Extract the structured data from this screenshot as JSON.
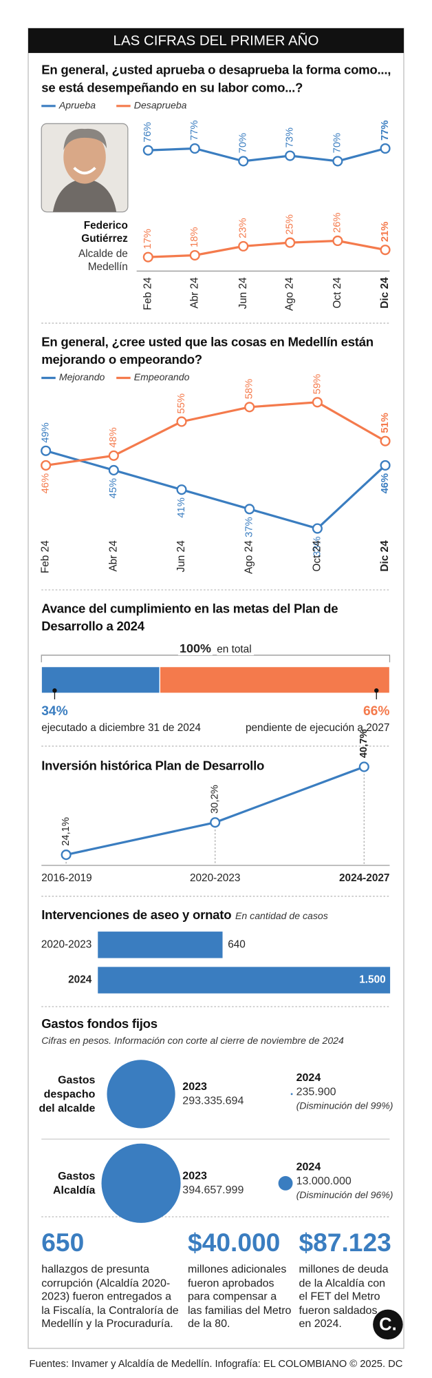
{
  "title": "LAS CIFRAS DEL PRIMER AÑO",
  "chart_data": [
    {
      "type": "line",
      "title": "En general, ¿usted aprueba o desaprueba la forma como..., se está desempeñando en su labor como...?",
      "person": {
        "name": "Federico Gutiérrez",
        "role": "Alcalde de Medellín"
      },
      "categories": [
        "Feb 24",
        "Abr 24",
        "Jun 24",
        "Ago 24",
        "Oct 24",
        "Dic 24"
      ],
      "series": [
        {
          "name": "Aprueba",
          "color": "#3a7dc0",
          "values": [
            76,
            77,
            70,
            73,
            70,
            77
          ],
          "value_labels": [
            "76%",
            "77%",
            "70%",
            "73%",
            "70%",
            "77%"
          ]
        },
        {
          "name": "Desaprueba",
          "color": "#f47a4c",
          "values": [
            17,
            18,
            23,
            25,
            26,
            21
          ],
          "value_labels": [
            "17%",
            "18%",
            "23%",
            "25%",
            "26%",
            "21%"
          ]
        }
      ]
    },
    {
      "type": "line",
      "title": "En general, ¿cree usted que las cosas en Medellín están mejorando o empeorando?",
      "categories": [
        "Feb 24",
        "Abr 24",
        "Jun 24",
        "Ago 24",
        "Oct 24",
        "Dic 24"
      ],
      "series": [
        {
          "name": "Mejorando",
          "color": "#3a7dc0",
          "values": [
            49,
            45,
            41,
            37,
            33,
            46
          ],
          "value_labels": [
            "49%",
            "45%",
            "41%",
            "37%",
            "33%",
            "46%"
          ]
        },
        {
          "name": "Empeorando",
          "color": "#f47a4c",
          "values": [
            46,
            48,
            55,
            58,
            59,
            51
          ],
          "value_labels": [
            "46%",
            "48%",
            "55%",
            "58%",
            "59%",
            "51%"
          ]
        }
      ]
    },
    {
      "type": "stacked-bar",
      "title": "Avance del cumplimiento en las metas del Plan de Desarrollo a 2024",
      "total": 100,
      "total_label": "100%",
      "total_note": "en total",
      "series": [
        {
          "name": "ejecutado a diciembre 31 de 2024",
          "color": "#3a7dc0",
          "values": [
            34
          ],
          "value_labels": [
            "34%"
          ]
        },
        {
          "name": "pendiente de ejecución a 2027",
          "color": "#f47a4c",
          "values": [
            66
          ],
          "value_labels": [
            "66%"
          ]
        }
      ]
    },
    {
      "type": "line",
      "title": "Inversión histórica Plan de Desarrollo",
      "categories": [
        "2016-2019",
        "2020-2023",
        "2024-2027"
      ],
      "color": "#3a7dc0",
      "values": [
        24.1,
        30.2,
        40.7
      ],
      "value_labels": [
        "24,1%",
        "30,2%",
        "40,7%"
      ]
    },
    {
      "type": "hbar",
      "title": "Intervenciones de aseo y ornato",
      "subtitle": "En cantidad de casos",
      "categories": [
        "2020-2023",
        "2024"
      ],
      "color": "#3a7dc0",
      "values": [
        640,
        1500
      ],
      "value_labels": [
        "640",
        "1.500"
      ]
    },
    {
      "type": "bubble",
      "title": "Gastos fondos fijos",
      "subtitle": "Cifras en pesos. Información con corte al cierre de noviembre de 2024",
      "categories": [
        "Gastos despacho del alcalde",
        "Gastos Alcaldía"
      ],
      "series": [
        {
          "name": "2023",
          "color": "#3a7dc0",
          "values": [
            293335694,
            394657999
          ],
          "value_labels": [
            "293.335.694",
            "394.657.999"
          ]
        },
        {
          "name": "2024",
          "color": "#3a7dc0",
          "values": [
            235900,
            13000000
          ],
          "value_labels": [
            "235.900",
            "13.000.000"
          ],
          "notes": [
            "(Disminución del 99%)",
            "(Disminución del 96%)"
          ]
        }
      ]
    }
  ],
  "stats": [
    {
      "value": "650",
      "text": "hallazgos de presunta corrupción (Alcaldía 2020-2023) fueron entregados a la Fiscalía, la Contraloría de Medellín y la Procuraduría."
    },
    {
      "value": "$40.000",
      "text": "millones adicionales fueron aprobados para compensar a las familias del Metro de la 80."
    },
    {
      "value": "$87.123",
      "text": "millones de deuda de la Alcaldía con el FET del Metro fueron saldados en 2024."
    }
  ],
  "logo": "C.",
  "footer": "Fuentes: Invamer y Alcaldía de Medellín. Infografía: EL COLOMBIANO © 2025. DC"
}
